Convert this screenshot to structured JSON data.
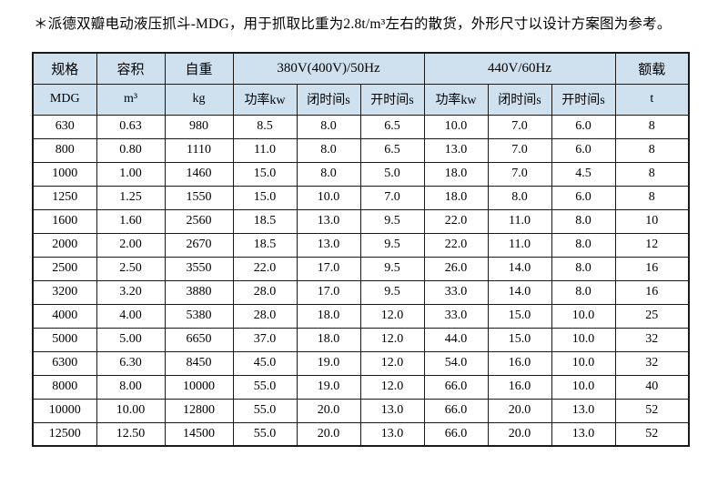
{
  "page": {
    "title": "＊派德双瓣电动液压抓斗-MDG，用于抓取比重为2.8t/m³左右的散货，外形尺寸以设计方案图为参考。"
  },
  "table": {
    "header_row1": {
      "spec": "规格",
      "capacity": "容积",
      "self_weight": "自重",
      "power_380": "380V(400V)/50Hz",
      "power_440": "440V/60Hz",
      "rated_load": "额载"
    },
    "header_row2": {
      "spec_unit": "MDG",
      "capacity_unit": "m³",
      "self_weight_unit": "kg",
      "power_kw_1": "功率kw",
      "close_time_1": "闭时间s",
      "open_time_1": "开时间s",
      "power_kw_2": "功率kw",
      "close_time_2": "闭时间s",
      "open_time_2": "开时间s",
      "rated_load_unit": "t"
    },
    "rows": [
      [
        "630",
        "0.63",
        "980",
        "8.5",
        "8.0",
        "6.5",
        "10.0",
        "7.0",
        "6.0",
        "8"
      ],
      [
        "800",
        "0.80",
        "1110",
        "11.0",
        "8.0",
        "6.5",
        "13.0",
        "7.0",
        "6.0",
        "8"
      ],
      [
        "1000",
        "1.00",
        "1460",
        "15.0",
        "8.0",
        "5.0",
        "18.0",
        "7.0",
        "4.5",
        "8"
      ],
      [
        "1250",
        "1.25",
        "1550",
        "15.0",
        "10.0",
        "7.0",
        "18.0",
        "8.0",
        "6.0",
        "8"
      ],
      [
        "1600",
        "1.60",
        "2560",
        "18.5",
        "13.0",
        "9.5",
        "22.0",
        "11.0",
        "8.0",
        "10"
      ],
      [
        "2000",
        "2.00",
        "2670",
        "18.5",
        "13.0",
        "9.5",
        "22.0",
        "11.0",
        "8.0",
        "12"
      ],
      [
        "2500",
        "2.50",
        "3550",
        "22.0",
        "17.0",
        "9.5",
        "26.0",
        "14.0",
        "8.0",
        "16"
      ],
      [
        "3200",
        "3.20",
        "3880",
        "28.0",
        "17.0",
        "9.5",
        "33.0",
        "14.0",
        "8.0",
        "16"
      ],
      [
        "4000",
        "4.00",
        "5380",
        "28.0",
        "18.0",
        "12.0",
        "33.0",
        "15.0",
        "10.0",
        "25"
      ],
      [
        "5000",
        "5.00",
        "6650",
        "37.0",
        "18.0",
        "12.0",
        "44.0",
        "15.0",
        "10.0",
        "32"
      ],
      [
        "6300",
        "6.30",
        "8450",
        "45.0",
        "19.0",
        "12.0",
        "54.0",
        "16.0",
        "10.0",
        "32"
      ],
      [
        "8000",
        "8.00",
        "10000",
        "55.0",
        "19.0",
        "12.0",
        "66.0",
        "16.0",
        "10.0",
        "40"
      ],
      [
        "10000",
        "10.00",
        "12800",
        "55.0",
        "20.0",
        "13.0",
        "66.0",
        "20.0",
        "13.0",
        "52"
      ],
      [
        "12500",
        "12.50",
        "14500",
        "55.0",
        "20.0",
        "13.0",
        "66.0",
        "20.0",
        "13.0",
        "52"
      ]
    ],
    "colors": {
      "header_bg": "#cfe1ee",
      "row_bg": "#ffffff",
      "border": "#1a1a1a"
    }
  }
}
